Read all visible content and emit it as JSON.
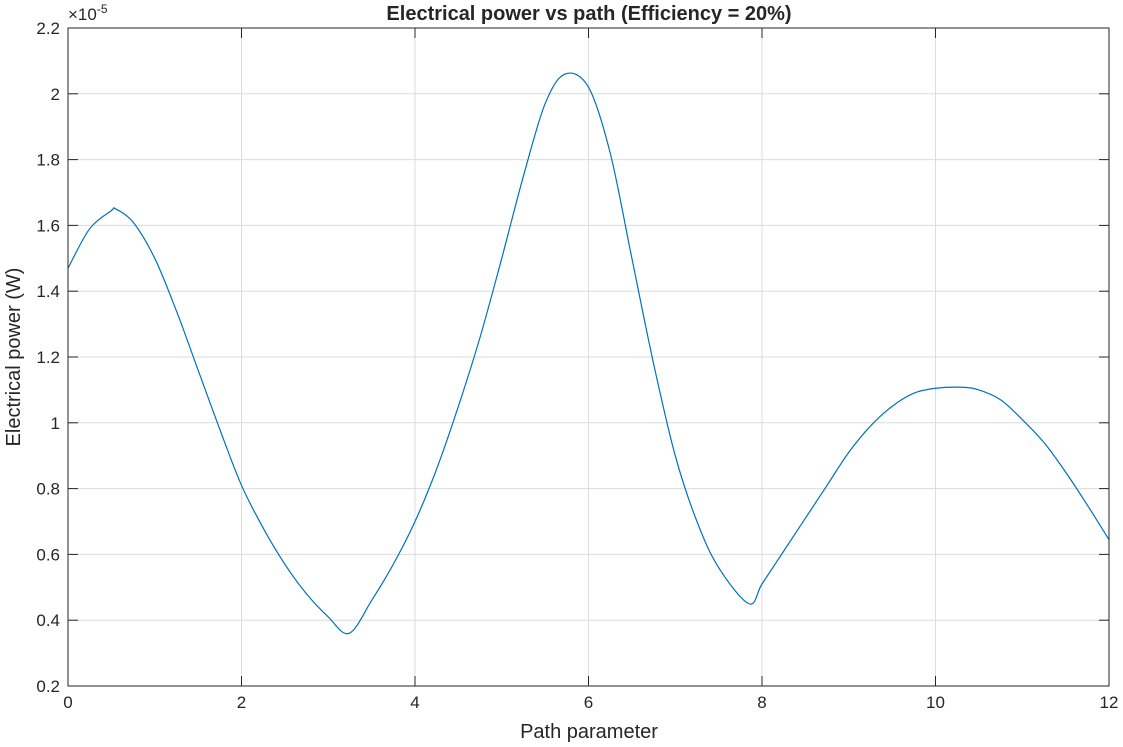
{
  "chart_data": {
    "type": "line",
    "title": "Electrical power vs path (Efficiency = 20%)",
    "xlabel": "Path parameter",
    "ylabel": "Electrical power (W)",
    "y_exponent_base": "×10",
    "y_exponent_power": "-5",
    "xlim": [
      0,
      12
    ],
    "ylim": [
      0.2,
      2.2
    ],
    "x_ticks": [
      0,
      2,
      4,
      6,
      8,
      10,
      12
    ],
    "y_ticks": [
      0.2,
      0.4,
      0.6,
      0.8,
      1,
      1.2,
      1.4,
      1.6,
      1.8,
      2,
      2.2
    ],
    "x_tick_labels": [
      "0",
      "2",
      "4",
      "6",
      "8",
      "10",
      "12"
    ],
    "y_tick_labels": [
      "0.2",
      "0.4",
      "0.6",
      "0.8",
      "1",
      "1.2",
      "1.4",
      "1.6",
      "1.8",
      "2",
      "2.2"
    ],
    "grid": true,
    "series": [
      {
        "color": "#0072BD",
        "x": [
          0,
          0.25,
          0.5,
          0.55,
          0.75,
          1.0,
          1.25,
          1.5,
          1.75,
          2.0,
          2.25,
          2.5,
          2.75,
          3.0,
          3.24,
          3.5,
          3.75,
          4.0,
          4.25,
          4.5,
          4.75,
          5.0,
          5.25,
          5.5,
          5.73,
          6.0,
          6.25,
          6.5,
          6.75,
          7.0,
          7.25,
          7.5,
          7.85,
          8.0,
          8.25,
          8.5,
          8.75,
          9.0,
          9.25,
          9.5,
          9.75,
          10.0,
          10.3,
          10.5,
          10.75,
          11.0,
          11.25,
          11.5,
          11.75,
          12.0
        ],
        "y": [
          1.47,
          1.59,
          1.645,
          1.65,
          1.61,
          1.5,
          1.34,
          1.16,
          0.98,
          0.81,
          0.68,
          0.57,
          0.48,
          0.41,
          0.36,
          0.46,
          0.57,
          0.7,
          0.86,
          1.05,
          1.26,
          1.5,
          1.75,
          1.97,
          2.06,
          2.02,
          1.82,
          1.5,
          1.18,
          0.9,
          0.7,
          0.56,
          0.45,
          0.51,
          0.61,
          0.71,
          0.81,
          0.91,
          0.99,
          1.05,
          1.09,
          1.105,
          1.108,
          1.1,
          1.07,
          1.01,
          0.94,
          0.85,
          0.75,
          0.645
        ]
      }
    ]
  }
}
